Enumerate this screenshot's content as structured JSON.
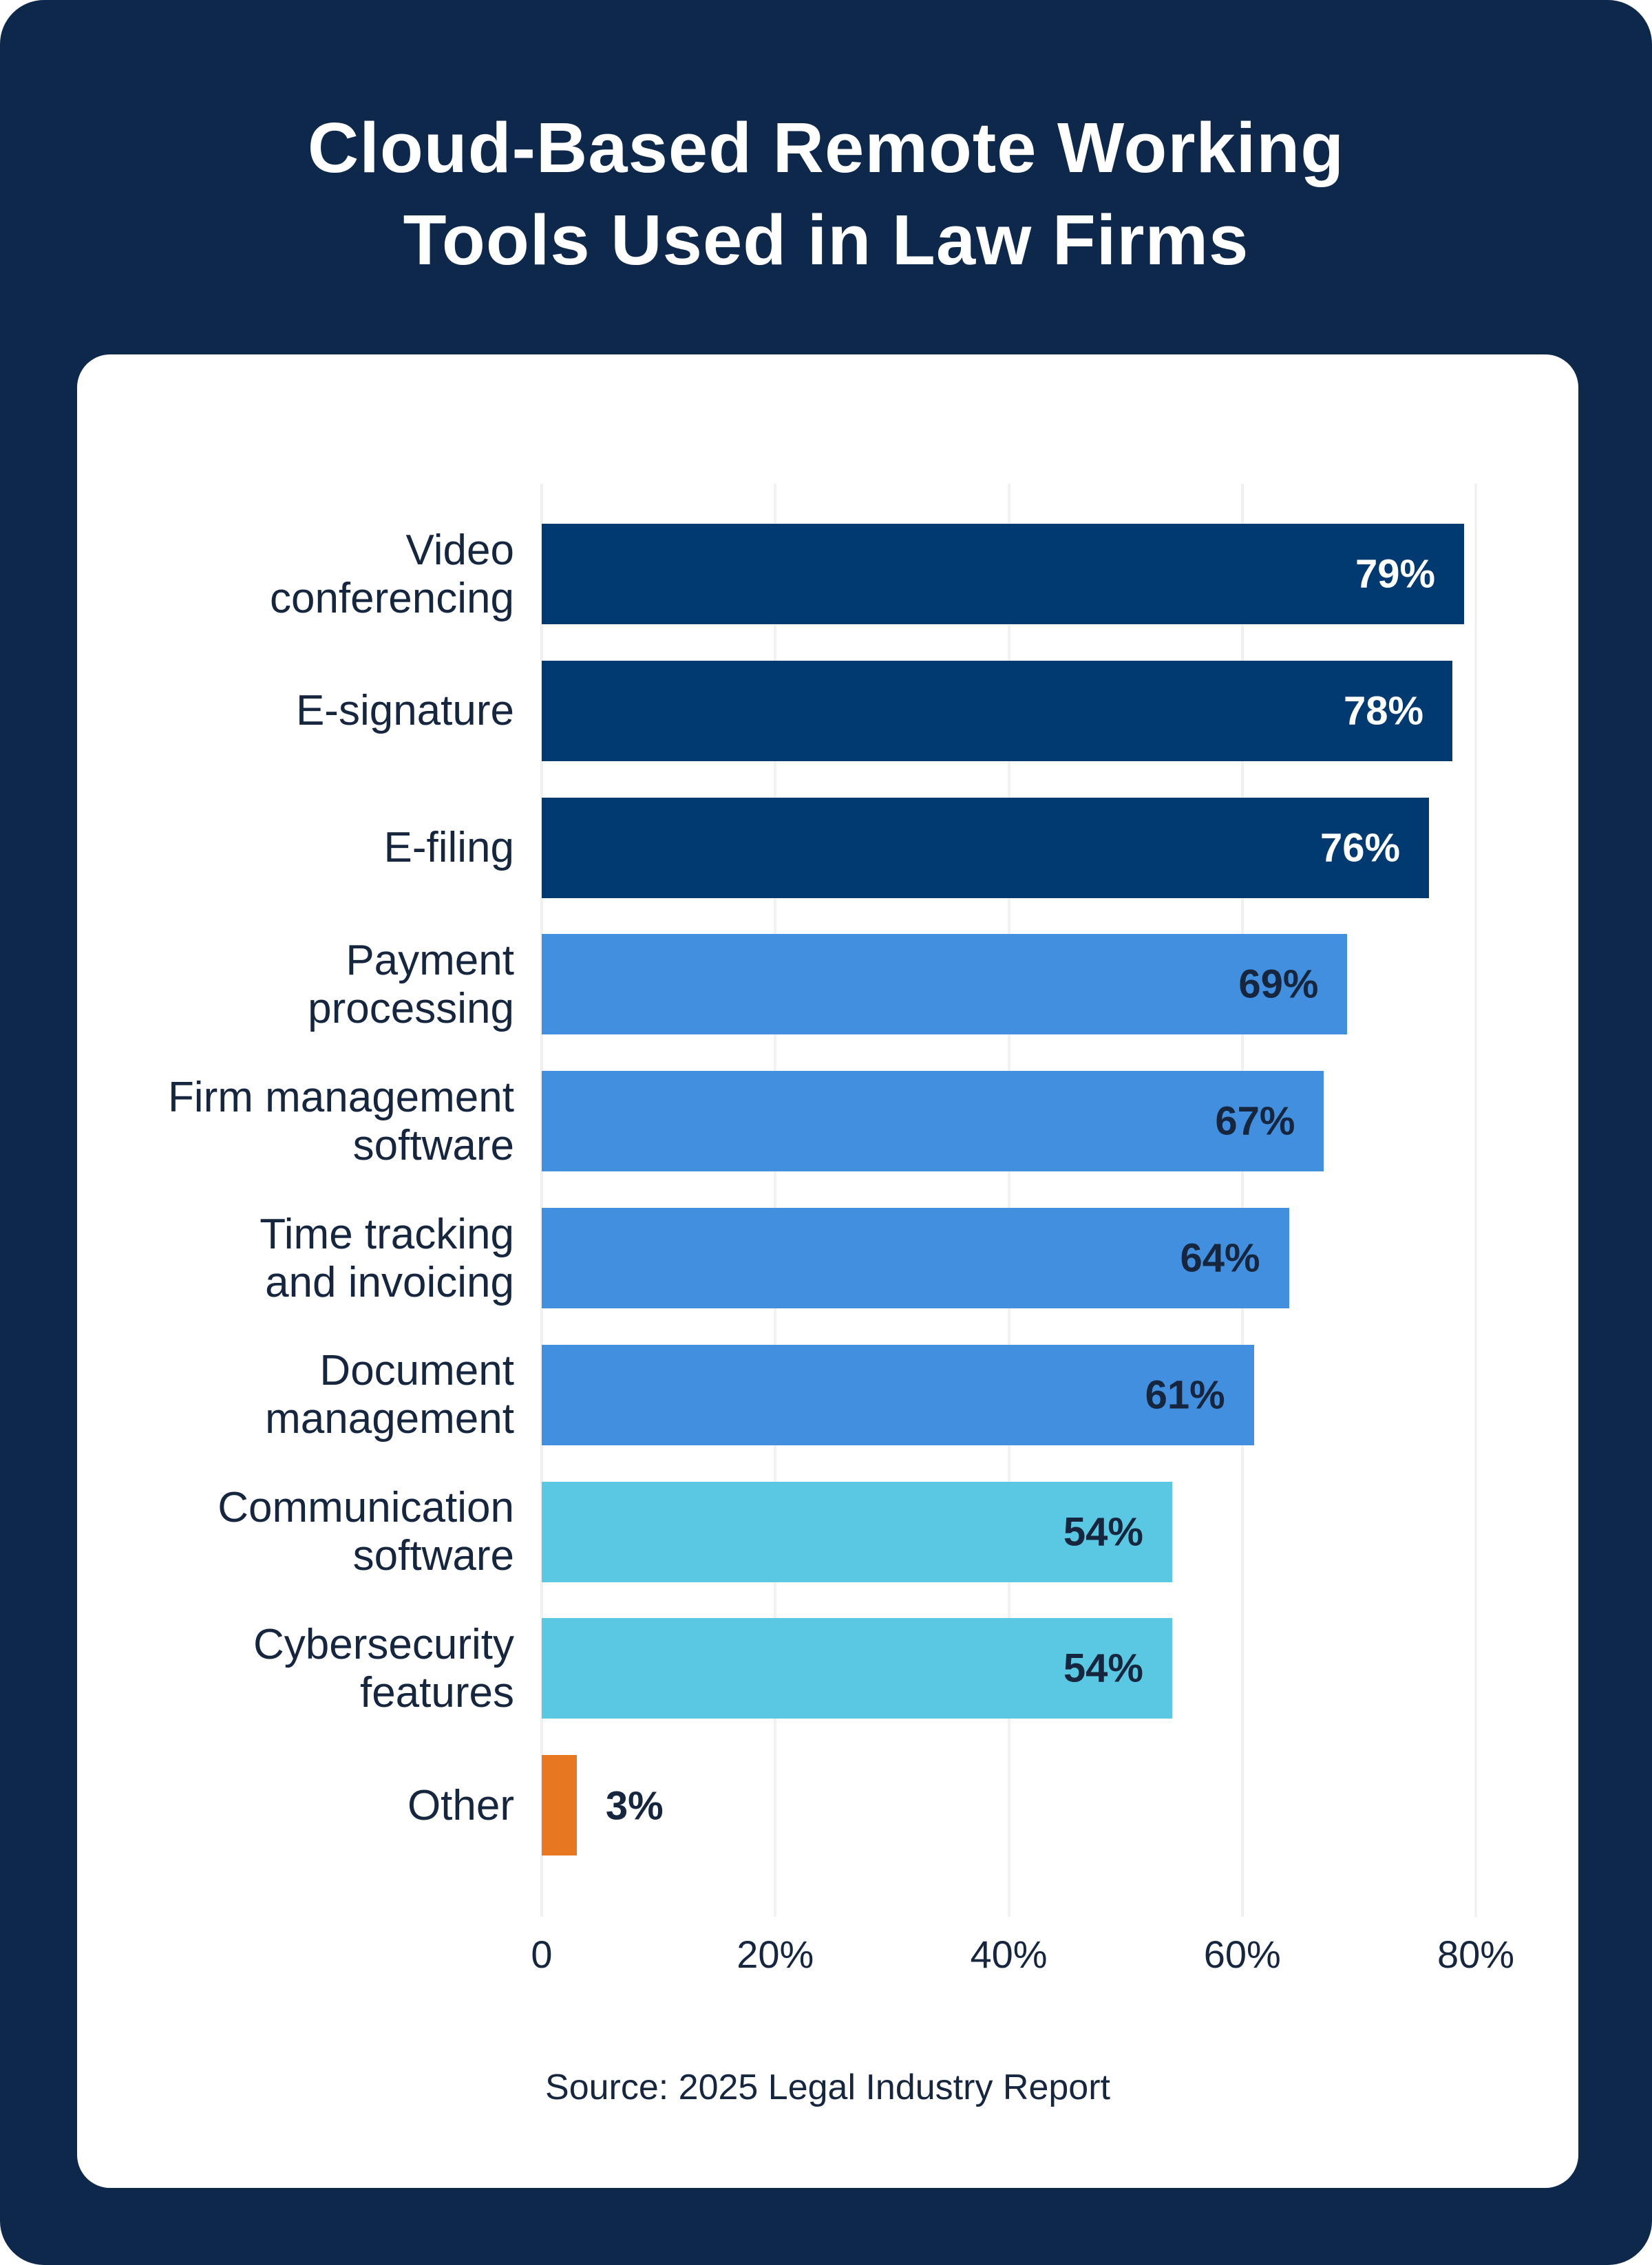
{
  "poster": {
    "background_color": "#0E284B",
    "card_color": "#FFFFFF",
    "title": "Cloud-Based Remote Working\nTools Used in Law Firms",
    "title_color": "#FFFFFF",
    "source": "Source: 2025 Legal Industry Report"
  },
  "colors": {
    "dark_bar": "#003A70",
    "medium_bar": "#418FDE",
    "light_bar": "#5BC8E3",
    "accent_bar": "#E87722",
    "text_dark": "#16263E",
    "value_on_dark": "#FFFFFF",
    "gridline": "#F1F1F1"
  },
  "chart_data": {
    "type": "bar",
    "orientation": "horizontal",
    "title": "Cloud-Based Remote Working Tools Used in Law Firms",
    "xlabel": "",
    "ylabel": "",
    "xlim": [
      0,
      82.7
    ],
    "grid": true,
    "categories": [
      "Video\nconferencing",
      "E-signature",
      "E-filing",
      "Payment\nprocessing",
      "Firm management\nsoftware",
      "Time tracking\nand invoicing",
      "Document\nmanagement",
      "Communication\nsoftware",
      "Cybersecurity\nfeatures",
      "Other"
    ],
    "values": [
      79,
      78,
      76,
      69,
      67,
      64,
      61,
      54,
      54,
      3
    ],
    "value_labels": [
      "79%",
      "78%",
      "76%",
      "69%",
      "67%",
      "64%",
      "61%",
      "54%",
      "54%",
      "3%"
    ],
    "bar_colors": [
      "#003A70",
      "#003A70",
      "#003A70",
      "#418FDE",
      "#418FDE",
      "#418FDE",
      "#418FDE",
      "#5BC8E3",
      "#5BC8E3",
      "#E87722"
    ],
    "value_label_colors": [
      "#FFFFFF",
      "#FFFFFF",
      "#FFFFFF",
      "#16263E",
      "#16263E",
      "#16263E",
      "#16263E",
      "#16263E",
      "#16263E",
      "#16263E"
    ],
    "value_label_inside": [
      true,
      true,
      true,
      true,
      true,
      true,
      true,
      true,
      true,
      false
    ],
    "x_ticks": [
      {
        "value": 0,
        "label": "0"
      },
      {
        "value": 20,
        "label": "20%"
      },
      {
        "value": 40,
        "label": "40%"
      },
      {
        "value": 60,
        "label": "60%"
      },
      {
        "value": 80,
        "label": "80%"
      }
    ],
    "legend": null
  }
}
